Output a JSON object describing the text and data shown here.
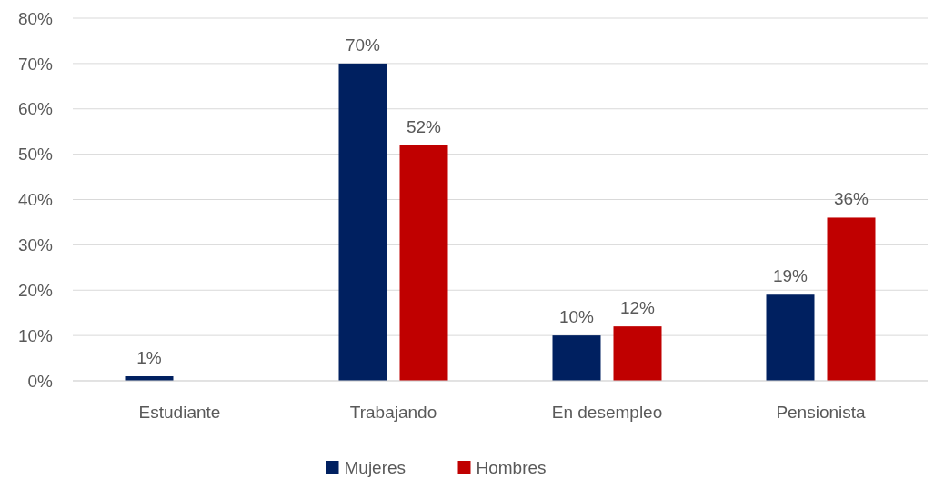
{
  "chart_data": {
    "type": "bar",
    "categories": [
      "Estudiante",
      "Trabajando",
      "En desempleo",
      "Pensionista"
    ],
    "series": [
      {
        "name": "Mujeres",
        "color": "#002060",
        "values": [
          1,
          70,
          10,
          19
        ],
        "value_labels": [
          "1%",
          "70%",
          "10%",
          "19%"
        ]
      },
      {
        "name": "Hombres",
        "color": "#c00000",
        "values": [
          0,
          52,
          12,
          36
        ],
        "value_labels": [
          null,
          "52%",
          "12%",
          "36%"
        ]
      }
    ],
    "ylim": [
      0,
      80
    ],
    "yticks": [
      {
        "value": 0,
        "label": "0%"
      },
      {
        "value": 10,
        "label": "10%"
      },
      {
        "value": 20,
        "label": "20%"
      },
      {
        "value": 30,
        "label": "30%"
      },
      {
        "value": 40,
        "label": "40%"
      },
      {
        "value": 50,
        "label": "50%"
      },
      {
        "value": 60,
        "label": "60%"
      },
      {
        "value": 70,
        "label": "70%"
      },
      {
        "value": 80,
        "label": "80%"
      }
    ],
    "grid": "y",
    "legend": "bottom"
  }
}
